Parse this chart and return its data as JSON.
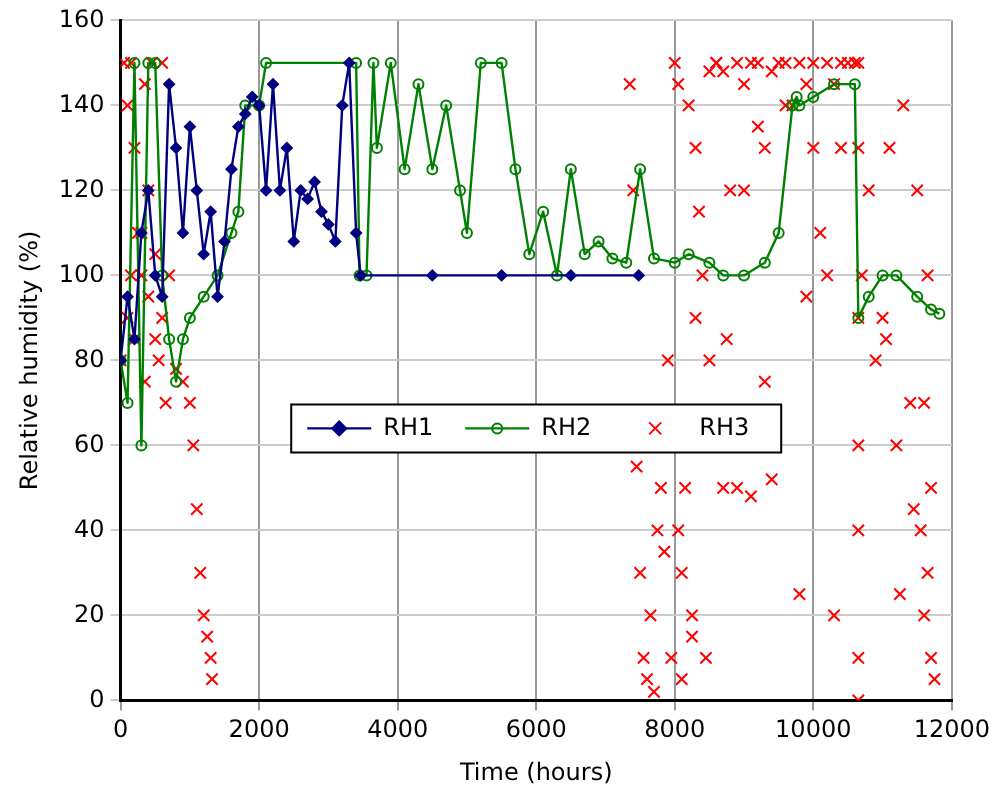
{
  "chart_data": {
    "type": "line",
    "xlabel": "Time (hours)",
    "ylabel": "Relative humidity (%)",
    "xlim": [
      0,
      12000
    ],
    "xticks": [
      0,
      2000,
      4000,
      6000,
      8000,
      10000,
      12000
    ],
    "ylim": [
      0,
      160
    ],
    "yticks": [
      0,
      20,
      40,
      60,
      80,
      100,
      120,
      140,
      160
    ],
    "grid": true,
    "legend": "center",
    "series": [
      {
        "name": "RH1",
        "marker": "diamond",
        "color": "#000080",
        "x": [
          0,
          100,
          200,
          300,
          400,
          500,
          600,
          700,
          800,
          900,
          1000,
          1100,
          1200,
          1300,
          1400,
          1500,
          1600,
          1700,
          1800,
          1900,
          2000,
          2100,
          2200,
          2300,
          2400,
          2500,
          2600,
          2700,
          2800,
          2900,
          3000,
          3100,
          3200,
          3300,
          3400,
          3465,
          4500,
          5500,
          6500,
          7480
        ],
        "values": [
          80,
          95,
          85,
          110,
          120,
          100,
          95,
          145,
          130,
          110,
          135,
          120,
          105,
          115,
          95,
          108,
          125,
          135,
          138,
          142,
          140,
          120,
          145,
          120,
          130,
          108,
          120,
          118,
          122,
          115,
          112,
          108,
          140,
          150,
          110,
          100,
          100,
          100,
          100,
          100
        ]
      },
      {
        "name": "RH2",
        "marker": "circle",
        "color": "#008000",
        "x": [
          0,
          100,
          200,
          300,
          400,
          500,
          600,
          700,
          800,
          900,
          1000,
          1200,
          1400,
          1600,
          1700,
          1800,
          2000,
          2100,
          3400,
          3450,
          3550,
          3650,
          3700,
          3900,
          4100,
          4300,
          4500,
          4700,
          4900,
          5000,
          5200,
          5500,
          5700,
          5900,
          6100,
          6300,
          6500,
          6700,
          6900,
          7100,
          7300,
          7500,
          7700,
          8000,
          8200,
          8500,
          8700,
          9000,
          9300,
          9500,
          9700,
          9760,
          9800,
          10000,
          10300,
          10600,
          10650,
          10800,
          11000,
          11200,
          11500,
          11700,
          11820
        ],
        "values": [
          80,
          70,
          150,
          60,
          150,
          150,
          100,
          85,
          75,
          85,
          90,
          95,
          100,
          110,
          115,
          140,
          140,
          150,
          150,
          100,
          100,
          150,
          130,
          150,
          125,
          145,
          125,
          140,
          120,
          110,
          150,
          150,
          125,
          105,
          115,
          100,
          125,
          105,
          108,
          104,
          103,
          125,
          104,
          103,
          105,
          103,
          100,
          100,
          103,
          110,
          140,
          142,
          140,
          142,
          145,
          145,
          90,
          95,
          100,
          100,
          95,
          92,
          91
        ]
      },
      {
        "name": "RH3",
        "type": "scatter",
        "marker": "cross",
        "color": "#ff0000",
        "x": [
          0,
          50,
          100,
          150,
          200,
          250,
          300,
          350,
          400,
          450,
          500,
          550,
          600,
          650,
          700,
          800,
          900,
          1000,
          1050,
          1100,
          1150,
          1200,
          1250,
          1300,
          1320,
          100,
          200,
          300,
          400,
          500,
          600,
          150,
          350,
          7350,
          7400,
          7450,
          7500,
          7550,
          7600,
          7650,
          7700,
          7750,
          7800,
          7850,
          7900,
          7950,
          8000,
          8050,
          8100,
          8150,
          8200,
          8250,
          8300,
          8400,
          8500,
          8600,
          8700,
          8800,
          8900,
          9000,
          9100,
          9200,
          9300,
          9400,
          9500,
          9600,
          9700,
          9800,
          9900,
          10000,
          10100,
          10200,
          10300,
          10400,
          10500,
          10600,
          10650,
          10650,
          10650,
          10650,
          10650,
          10650,
          10650,
          10700,
          10800,
          10900,
          11000,
          11100,
          11200,
          11300,
          11400,
          11500,
          11550,
          11600,
          11650,
          11700,
          11750,
          8300,
          8500,
          8700,
          9000,
          9200,
          9400,
          9600,
          9800,
          10000,
          10200,
          10400,
          8100,
          8350,
          8600,
          8900,
          9300,
          9900,
          10300,
          11050,
          11250,
          11450,
          11650,
          8050,
          8250,
          8450,
          8750,
          9100,
          11600,
          11700
        ],
        "values": [
          80,
          150,
          90,
          150,
          85,
          110,
          100,
          75,
          95,
          150,
          85,
          80,
          150,
          70,
          100,
          78,
          75,
          70,
          60,
          45,
          30,
          20,
          15,
          10,
          5,
          140,
          130,
          110,
          120,
          105,
          90,
          100,
          145,
          145,
          120,
          55,
          30,
          10,
          5,
          20,
          2,
          40,
          50,
          35,
          80,
          10,
          150,
          145,
          5,
          50,
          140,
          20,
          130,
          100,
          148,
          150,
          148,
          120,
          150,
          145,
          150,
          150,
          130,
          148,
          150,
          150,
          140,
          150,
          145,
          150,
          110,
          150,
          145,
          150,
          150,
          150,
          130,
          60,
          90,
          40,
          10,
          0,
          150,
          100,
          120,
          80,
          90,
          130,
          60,
          140,
          70,
          120,
          40,
          20,
          30,
          50,
          5,
          90,
          80,
          50,
          120,
          135,
          52,
          140,
          25,
          130,
          100,
          130,
          30,
          115,
          150,
          50,
          75,
          95,
          20,
          85,
          25,
          45,
          100,
          40,
          15,
          10,
          85,
          48,
          70,
          10
        ]
      }
    ]
  }
}
